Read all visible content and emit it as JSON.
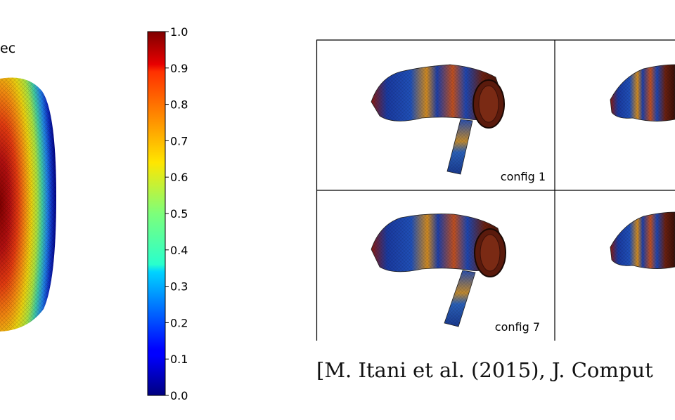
{
  "figure": {
    "left_label": "ec",
    "colorbar": {
      "ticks": [
        "1.0",
        "0.9",
        "0.8",
        "0.7",
        "0.6",
        "0.5",
        "0.4",
        "0.3",
        "0.2",
        "0.1",
        "0.0"
      ],
      "range": [
        0,
        1
      ],
      "colormap": "jet"
    },
    "panels": [
      {
        "label": "config 1"
      },
      {
        "label": "config 7"
      }
    ],
    "citation": "[M. Itani et al. (2015), J. Comput"
  }
}
